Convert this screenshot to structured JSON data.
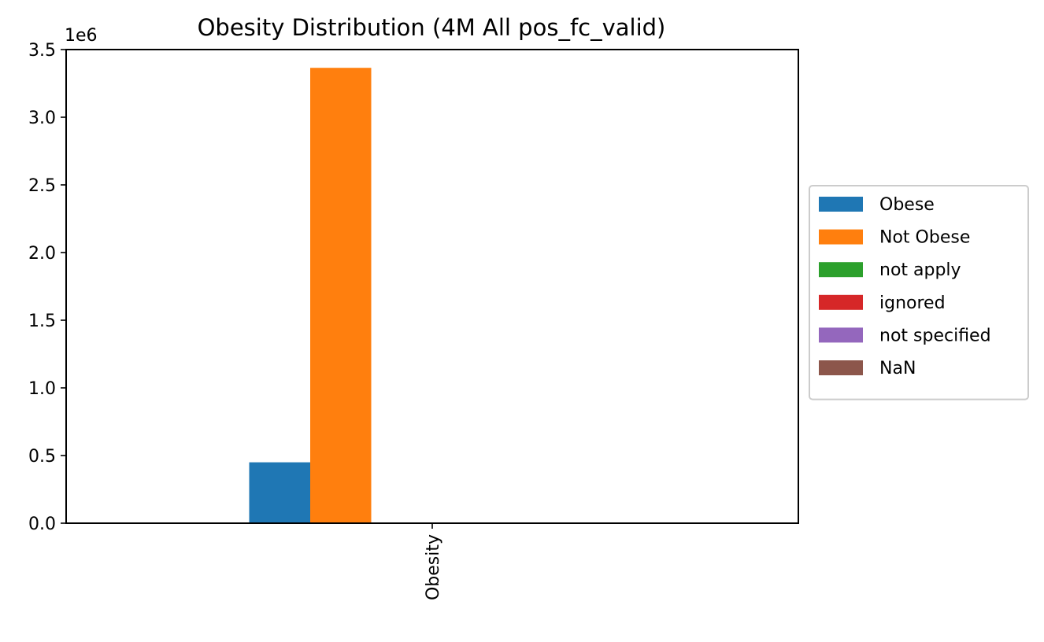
{
  "chart_data": {
    "type": "bar",
    "title": "Obesity Distribution (4M All pos_fc_valid)",
    "categories": [
      "Obesity"
    ],
    "series": [
      {
        "name": "Obese",
        "values": [
          450000
        ],
        "color": "#1f77b4"
      },
      {
        "name": "Not Obese",
        "values": [
          3365000
        ],
        "color": "#ff7f0e"
      },
      {
        "name": "not apply",
        "values": [
          0
        ],
        "color": "#2ca02c"
      },
      {
        "name": "ignored",
        "values": [
          0
        ],
        "color": "#d62728"
      },
      {
        "name": "not specified",
        "values": [
          0
        ],
        "color": "#9467bd"
      },
      {
        "name": "NaN",
        "values": [
          0
        ],
        "color": "#8c564b"
      }
    ],
    "ylim": [
      0,
      3500000
    ],
    "yticks": [
      0,
      500000,
      1000000,
      1500000,
      2000000,
      2500000,
      3000000,
      3500000
    ],
    "ytick_labels": [
      "0.0",
      "0.5",
      "1.0",
      "1.5",
      "2.0",
      "2.5",
      "3.0",
      "3.5"
    ],
    "y_offset_label": "1e6",
    "xlabel": "",
    "ylabel": "",
    "grid": false,
    "legend_position": "center-right-outside"
  }
}
